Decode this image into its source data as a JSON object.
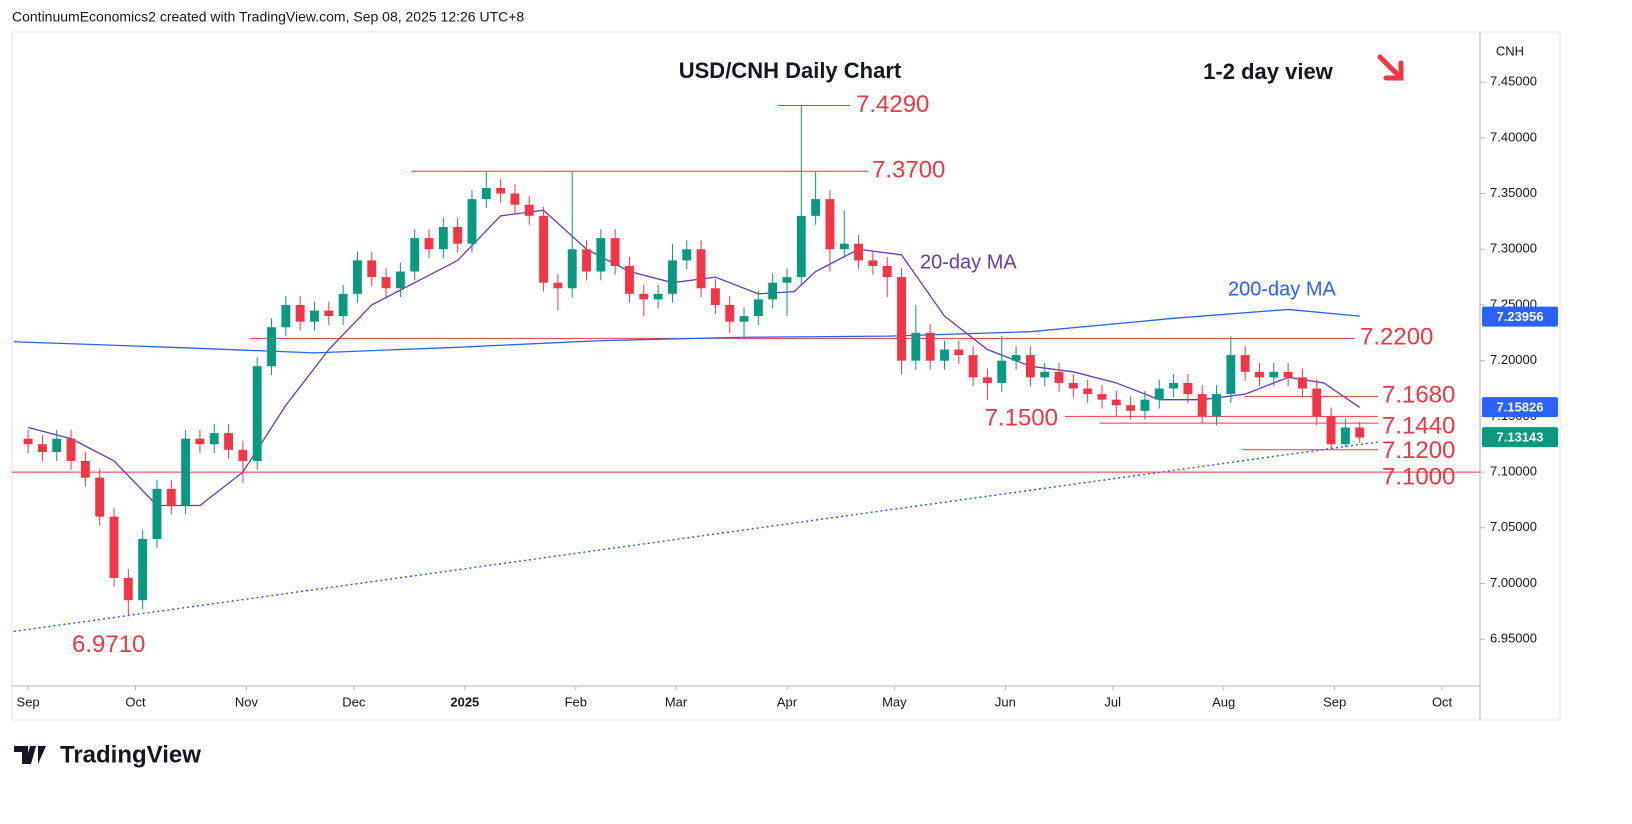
{
  "header": "ContinuumEconomics2 created with TradingView.com, Sep 08, 2025 12:26 UTC+8",
  "footer": "TradingView",
  "chart_data": {
    "type": "candlestick",
    "title": "USD/CNH Daily Chart",
    "subtitle": "1-2 day view",
    "symbol": "CNH",
    "xlim": [
      -4.5,
      405.6
    ],
    "ylim": [
      6.908,
      7.495
    ],
    "xticks": [
      {
        "value": 0,
        "label": "Sep"
      },
      {
        "value": 30,
        "label": "Oct"
      },
      {
        "value": 61,
        "label": "Nov"
      },
      {
        "value": 91,
        "label": "Dec"
      },
      {
        "value": 122,
        "label": "2025"
      },
      {
        "value": 153,
        "label": "Feb"
      },
      {
        "value": 181,
        "label": "Mar"
      },
      {
        "value": 212,
        "label": "Apr"
      },
      {
        "value": 242,
        "label": "May"
      },
      {
        "value": 273,
        "label": "Jun"
      },
      {
        "value": 303,
        "label": "Jul"
      },
      {
        "value": 334,
        "label": "Aug"
      },
      {
        "value": 365,
        "label": "Sep"
      },
      {
        "value": 395,
        "label": "Oct"
      }
    ],
    "yticks": [
      {
        "value": 6.95,
        "label": "6.95000"
      },
      {
        "value": 7.0,
        "label": "7.00000"
      },
      {
        "value": 7.05,
        "label": "7.05000"
      },
      {
        "value": 7.1,
        "label": "7.10000"
      },
      {
        "value": 7.15,
        "label": "7.15000"
      },
      {
        "value": 7.2,
        "label": "7.20000"
      },
      {
        "value": 7.25,
        "label": "7.25000"
      },
      {
        "value": 7.3,
        "label": "7.30000"
      },
      {
        "value": 7.35,
        "label": "7.35000"
      },
      {
        "value": 7.4,
        "label": "7.40000"
      },
      {
        "value": 7.45,
        "label": "7.45000"
      }
    ],
    "grid": false,
    "up_color": "#089981",
    "down_color": "#f23645",
    "candles": {
      "x": [
        0,
        4,
        8,
        12,
        16,
        20,
        24,
        28,
        32,
        36,
        40,
        44,
        48,
        52,
        56,
        60,
        64,
        68,
        72,
        76,
        80,
        84,
        88,
        92,
        96,
        100,
        104,
        108,
        112,
        116,
        120,
        124,
        128,
        132,
        136,
        140,
        144,
        148,
        152,
        156,
        160,
        164,
        168,
        172,
        176,
        180,
        184,
        188,
        192,
        196,
        200,
        204,
        208,
        212,
        216,
        220,
        224,
        228,
        232,
        236,
        240,
        244,
        248,
        252,
        256,
        260,
        264,
        268,
        272,
        276,
        280,
        284,
        288,
        292,
        296,
        300,
        304,
        308,
        312,
        316,
        320,
        324,
        328,
        332,
        336,
        340,
        344,
        348,
        352,
        356,
        360,
        364,
        368,
        372
      ],
      "open": [
        7.13,
        7.125,
        7.118,
        7.13,
        7.11,
        7.095,
        7.06,
        7.005,
        6.985,
        7.04,
        7.085,
        7.07,
        7.13,
        7.125,
        7.135,
        7.12,
        7.11,
        7.195,
        7.23,
        7.25,
        7.235,
        7.245,
        7.24,
        7.26,
        7.29,
        7.275,
        7.265,
        7.28,
        7.31,
        7.3,
        7.32,
        7.305,
        7.345,
        7.355,
        7.35,
        7.34,
        7.33,
        7.27,
        7.265,
        7.3,
        7.28,
        7.31,
        7.285,
        7.26,
        7.255,
        7.26,
        7.29,
        7.3,
        7.265,
        7.25,
        7.235,
        7.24,
        7.255,
        7.27,
        7.275,
        7.33,
        7.345,
        7.3,
        7.305,
        7.29,
        7.285,
        7.275,
        7.2,
        7.225,
        7.2,
        7.21,
        7.205,
        7.185,
        7.18,
        7.2,
        7.205,
        7.185,
        7.19,
        7.18,
        7.175,
        7.17,
        7.165,
        7.16,
        7.155,
        7.165,
        7.175,
        7.18,
        7.17,
        7.15,
        7.17,
        7.205,
        7.19,
        7.185,
        7.19,
        7.185,
        7.175,
        7.15,
        7.125,
        7.14
      ],
      "high": [
        7.138,
        7.133,
        7.138,
        7.138,
        7.118,
        7.103,
        7.068,
        7.013,
        7.048,
        7.093,
        7.093,
        7.138,
        7.138,
        7.143,
        7.143,
        7.128,
        7.203,
        7.238,
        7.258,
        7.258,
        7.253,
        7.253,
        7.268,
        7.298,
        7.298,
        7.283,
        7.288,
        7.318,
        7.318,
        7.328,
        7.328,
        7.353,
        7.37,
        7.363,
        7.358,
        7.348,
        7.338,
        7.278,
        7.37,
        7.308,
        7.318,
        7.318,
        7.293,
        7.268,
        7.268,
        7.305,
        7.308,
        7.308,
        7.273,
        7.258,
        7.248,
        7.263,
        7.278,
        7.283,
        7.429,
        7.37,
        7.353,
        7.335,
        7.313,
        7.298,
        7.293,
        7.283,
        7.25,
        7.233,
        7.218,
        7.218,
        7.213,
        7.193,
        7.222,
        7.213,
        7.213,
        7.198,
        7.198,
        7.188,
        7.183,
        7.178,
        7.173,
        7.168,
        7.173,
        7.183,
        7.188,
        7.188,
        7.178,
        7.178,
        7.222,
        7.213,
        7.198,
        7.198,
        7.198,
        7.193,
        7.183,
        7.158,
        7.148,
        7.145
      ],
      "low": [
        7.117,
        7.11,
        7.11,
        7.102,
        7.087,
        7.052,
        6.997,
        6.971,
        6.977,
        7.032,
        7.062,
        7.062,
        7.117,
        7.117,
        7.112,
        7.09,
        7.102,
        7.187,
        7.222,
        7.227,
        7.227,
        7.232,
        7.232,
        7.252,
        7.267,
        7.257,
        7.257,
        7.272,
        7.292,
        7.292,
        7.297,
        7.297,
        7.337,
        7.342,
        7.332,
        7.322,
        7.262,
        7.245,
        7.257,
        7.272,
        7.272,
        7.277,
        7.252,
        7.24,
        7.247,
        7.252,
        7.282,
        7.257,
        7.242,
        7.225,
        7.22,
        7.232,
        7.247,
        7.24,
        7.267,
        7.322,
        7.28,
        7.292,
        7.282,
        7.277,
        7.257,
        7.188,
        7.192,
        7.192,
        7.192,
        7.197,
        7.177,
        7.165,
        7.172,
        7.192,
        7.177,
        7.177,
        7.172,
        7.167,
        7.162,
        7.157,
        7.15,
        7.147,
        7.147,
        7.157,
        7.167,
        7.162,
        7.144,
        7.142,
        7.162,
        7.182,
        7.177,
        7.177,
        7.177,
        7.167,
        7.142,
        7.12,
        7.122,
        7.126
      ],
      "close": [
        7.125,
        7.118,
        7.13,
        7.11,
        7.095,
        7.06,
        7.005,
        6.985,
        7.04,
        7.085,
        7.07,
        7.13,
        7.125,
        7.135,
        7.12,
        7.11,
        7.195,
        7.23,
        7.25,
        7.235,
        7.245,
        7.24,
        7.26,
        7.29,
        7.275,
        7.265,
        7.28,
        7.31,
        7.3,
        7.32,
        7.305,
        7.345,
        7.355,
        7.35,
        7.34,
        7.33,
        7.27,
        7.265,
        7.3,
        7.28,
        7.31,
        7.285,
        7.26,
        7.255,
        7.26,
        7.29,
        7.3,
        7.265,
        7.25,
        7.235,
        7.24,
        7.255,
        7.27,
        7.275,
        7.33,
        7.345,
        7.3,
        7.305,
        7.29,
        7.285,
        7.275,
        7.2,
        7.225,
        7.2,
        7.21,
        7.205,
        7.185,
        7.18,
        7.2,
        7.205,
        7.185,
        7.19,
        7.18,
        7.175,
        7.17,
        7.165,
        7.16,
        7.155,
        7.165,
        7.175,
        7.18,
        7.17,
        7.15,
        7.17,
        7.205,
        7.19,
        7.185,
        7.19,
        7.185,
        7.175,
        7.15,
        7.125,
        7.14,
        7.131
      ]
    },
    "series": [
      {
        "name": "20-day MA",
        "color": "#673ab7",
        "x": [
          0,
          12,
          24,
          36,
          48,
          60,
          72,
          84,
          96,
          108,
          120,
          132,
          144,
          156,
          168,
          180,
          192,
          204,
          214,
          220,
          232,
          244,
          256,
          268,
          280,
          292,
          304,
          316,
          328,
          340,
          352,
          362,
          372
        ],
        "values": [
          7.14,
          7.13,
          7.11,
          7.07,
          7.07,
          7.1,
          7.16,
          7.21,
          7.25,
          7.27,
          7.29,
          7.33,
          7.335,
          7.3,
          7.28,
          7.27,
          7.275,
          7.26,
          7.262,
          7.28,
          7.3,
          7.295,
          7.24,
          7.21,
          7.195,
          7.19,
          7.18,
          7.165,
          7.165,
          7.17,
          7.185,
          7.18,
          7.158
        ]
      },
      {
        "name": "200-day MA",
        "color": "#2962ff",
        "x": [
          -4,
          40,
          80,
          120,
          160,
          200,
          240,
          280,
          320,
          352,
          372
        ],
        "values": [
          7.217,
          7.212,
          7.207,
          7.212,
          7.218,
          7.221,
          7.222,
          7.226,
          7.238,
          7.246,
          7.24
        ]
      }
    ],
    "trendline": {
      "color": "#2962ff",
      "x": [
        -4,
        377
      ],
      "values": [
        6.957,
        7.127
      ]
    },
    "levels": [
      {
        "value": 7.429,
        "label": "7.4290"
      },
      {
        "value": 7.37,
        "label": "7.3700"
      },
      {
        "value": 7.22,
        "label": "7.2200"
      },
      {
        "value": 7.168,
        "label": "7.1680"
      },
      {
        "value": 7.15,
        "label": "7.1500"
      },
      {
        "value": 7.144,
        "label": "7.1440"
      },
      {
        "value": 7.12,
        "label": "7.1200"
      },
      {
        "value": 7.1,
        "label": "7.1000"
      }
    ],
    "low_annotation": {
      "value": 6.971,
      "label": "6.9710"
    },
    "price_tags": [
      {
        "value": 7.23956,
        "color": "#2962ff"
      },
      {
        "value": 7.15826,
        "color": "#2962ff"
      },
      {
        "value": 7.13143,
        "color": "#089981"
      }
    ]
  }
}
